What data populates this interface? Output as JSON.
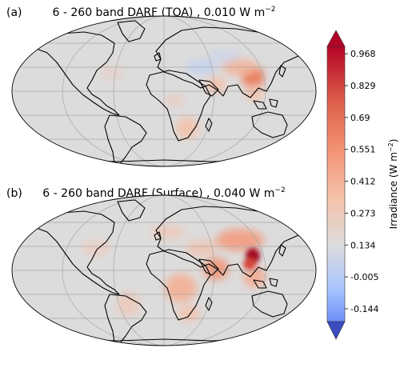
{
  "chart_data": [
    {
      "type": "heatmap",
      "panel_label": "(a)",
      "title": "6 - 260 band DARF (TOA) , 0.010 W m",
      "title_sup": "−2",
      "hotspots": [
        {
          "region": "East China",
          "value": 0.6
        },
        {
          "region": "India",
          "value": 0.25
        },
        {
          "region": "Southeast Asia",
          "value": 0.2
        },
        {
          "region": "Southern Africa",
          "value": 0.25
        },
        {
          "region": "Central Africa",
          "value": 0.15
        },
        {
          "region": "Middle East",
          "value": -0.1
        },
        {
          "region": "Central Asia",
          "value": -0.05
        },
        {
          "region": "North America",
          "value": 0.05
        }
      ]
    },
    {
      "type": "heatmap",
      "panel_label": "(b)",
      "title": "6 - 260 band DARF (Surface) , 0.040 W m",
      "title_sup": "−2",
      "hotspots": [
        {
          "region": "East China",
          "value": 0.968
        },
        {
          "region": "India",
          "value": 0.55
        },
        {
          "region": "Southeast Asia",
          "value": 0.35
        },
        {
          "region": "Central Africa",
          "value": 0.35
        },
        {
          "region": "Southern Africa",
          "value": 0.3
        },
        {
          "region": "Europe",
          "value": 0.15
        },
        {
          "region": "North America",
          "value": 0.1
        },
        {
          "region": "South America",
          "value": 0.12
        },
        {
          "region": "Middle East",
          "value": 0.15
        }
      ]
    }
  ],
  "colorbar": {
    "label": "Irradiance (W m",
    "label_sup": "−2",
    "label_close": ")",
    "ticks": [
      "0.968",
      "0.829",
      "0.69",
      "0.551",
      "0.412",
      "0.273",
      "0.134",
      "-0.005",
      "-0.144"
    ],
    "tick_values": [
      0.968,
      0.829,
      0.69,
      0.551,
      0.412,
      0.273,
      0.134,
      -0.005,
      -0.144
    ],
    "range": [
      -0.2,
      1.0
    ],
    "colormap": "coolwarm",
    "extend": "both"
  },
  "colors": {
    "ocean_land_neutral": "#dcdcdc",
    "max_red": "#a2061f",
    "min_blue": "#2e3fa1"
  }
}
